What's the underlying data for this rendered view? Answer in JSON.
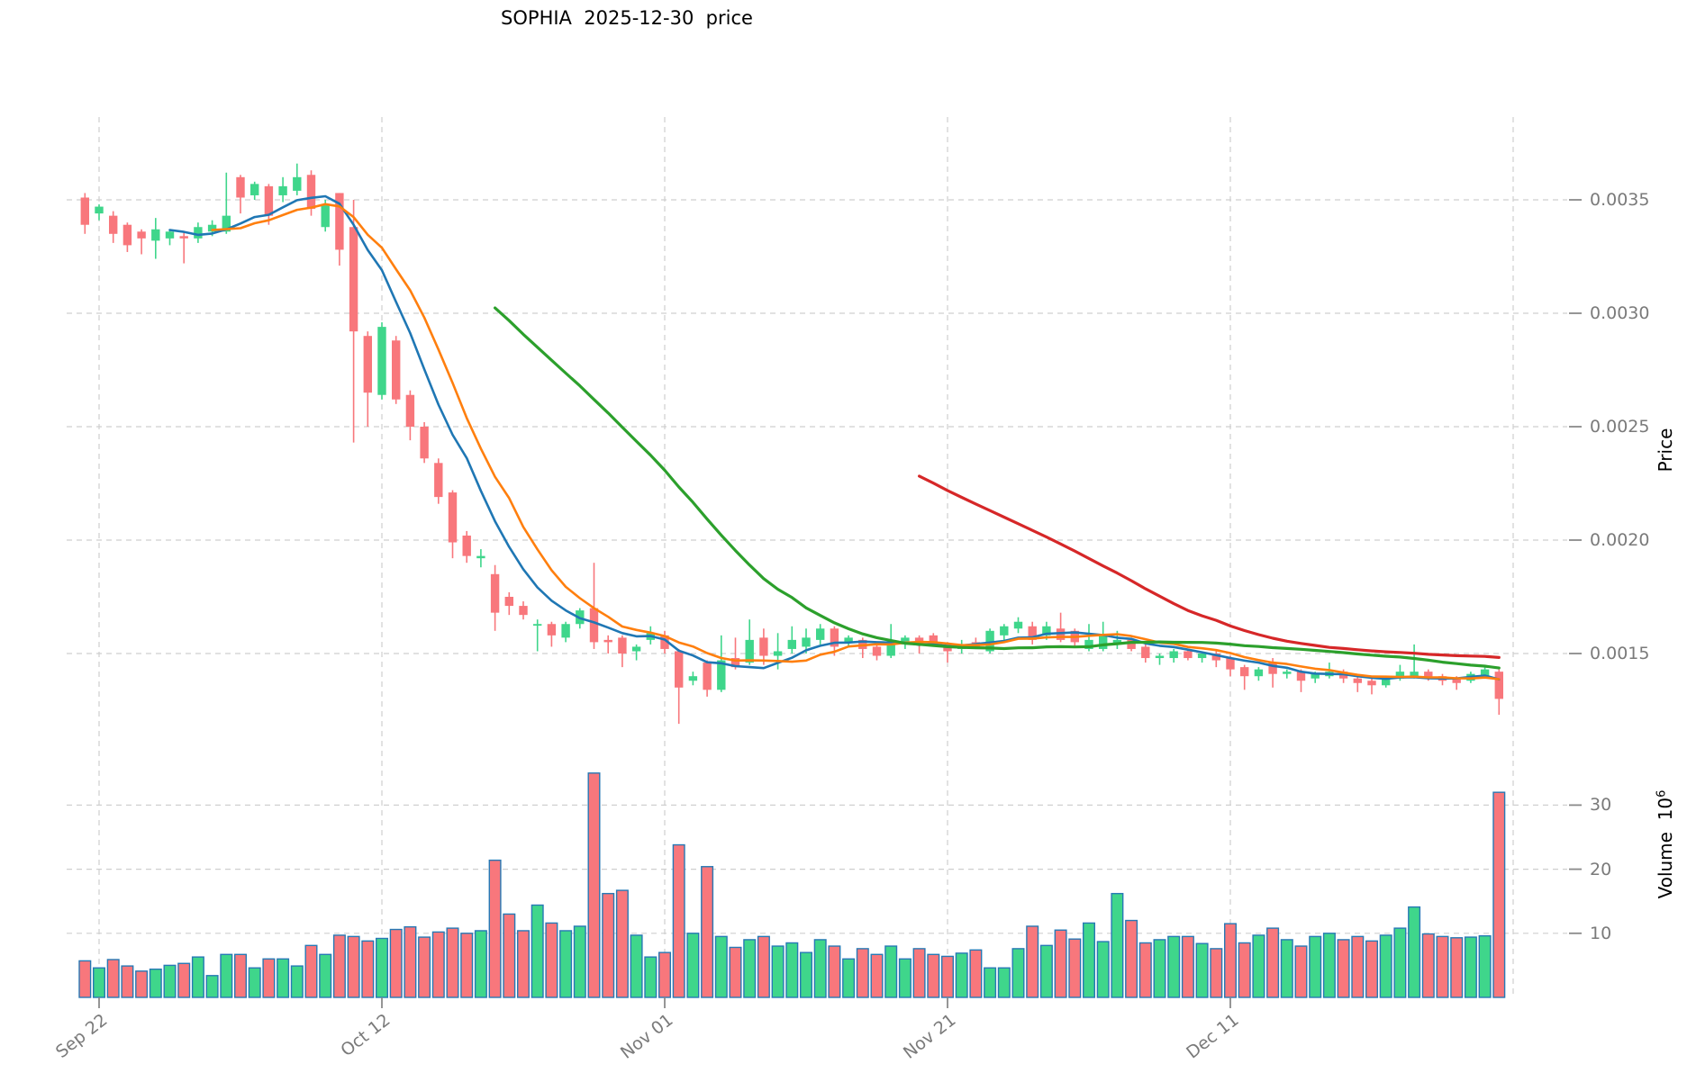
{
  "title": "SOPHIA  2025-12-30  price",
  "price_axis": {
    "label": "Price",
    "ticks": [
      0.0035,
      0.003,
      0.0025,
      0.002,
      0.0015
    ]
  },
  "volume_axis": {
    "label": "Volume",
    "base": "10",
    "exponent": "6",
    "ticks": [
      30,
      20,
      10
    ]
  },
  "x_axis": {
    "ticks": [
      {
        "label": "Sep 22",
        "date": "2025-09-22"
      },
      {
        "label": "Oct 12",
        "date": "2025-10-12"
      },
      {
        "label": "Nov 01",
        "date": "2025-11-01"
      },
      {
        "label": "Nov 21",
        "date": "2025-11-21"
      },
      {
        "label": "Dec 11",
        "date": "2025-12-11"
      }
    ],
    "gridline_only_dates": [
      "2025-12-31"
    ]
  },
  "colors": {
    "up": "#3fd68b",
    "down": "#f8777c",
    "volume_edge": "#2779b5",
    "grid": "#cfcfcf",
    "tick_mark": "#8a8a8a",
    "tick_text": "#7a7a7a",
    "title_text": "#000000",
    "ma_colors": [
      "#1f77b4",
      "#ff7f0e",
      "#2ca02c",
      "#d62728"
    ]
  },
  "chart_data": {
    "type": "candlestick+volume",
    "title": "SOPHIA  2025-12-30  price",
    "ylabel": "Price",
    "ylabel_lower": "Volume 10^6",
    "price_ylim": [
      0.00109,
      0.003865
    ],
    "volume_ylim_millions": [
      0,
      39
    ],
    "grid": "dashed",
    "legend_position": "none",
    "moving_averages": [
      {
        "name": "SMA7",
        "period": 7,
        "color": "#1f77b4",
        "width": 2.6
      },
      {
        "name": "SMA10",
        "period": 10,
        "color": "#ff7f0e",
        "width": 2.6
      },
      {
        "name": "SMA30",
        "period": 30,
        "color": "#2ca02c",
        "width": 3.2
      },
      {
        "name": "SMA60",
        "period": 60,
        "color": "#d62728",
        "width": 3.2
      }
    ],
    "columns": [
      "date",
      "open",
      "high",
      "low",
      "close",
      "volume_millions"
    ],
    "ohlcv": [
      [
        "2025-09-21",
        0.00351,
        0.00353,
        0.00335,
        0.00339,
        5.7
      ],
      [
        "2025-09-22",
        0.00344,
        0.00348,
        0.00341,
        0.00347,
        4.6
      ],
      [
        "2025-09-23",
        0.00343,
        0.00345,
        0.00331,
        0.00335,
        5.9
      ],
      [
        "2025-09-24",
        0.00339,
        0.0034,
        0.00327,
        0.0033,
        4.9
      ],
      [
        "2025-09-25",
        0.00336,
        0.00337,
        0.00326,
        0.00333,
        4.1
      ],
      [
        "2025-09-26",
        0.00332,
        0.00342,
        0.00324,
        0.00337,
        4.4
      ],
      [
        "2025-09-27",
        0.00333,
        0.00337,
        0.0033,
        0.00336,
        5.0
      ],
      [
        "2025-09-28",
        0.00334,
        0.00336,
        0.00322,
        0.00333,
        5.3
      ],
      [
        "2025-09-29",
        0.00333,
        0.0034,
        0.00331,
        0.00338,
        6.3
      ],
      [
        "2025-09-30",
        0.00336,
        0.00341,
        0.00334,
        0.00339,
        3.4
      ],
      [
        "2025-10-01",
        0.00336,
        0.00362,
        0.00335,
        0.00343,
        6.7
      ],
      [
        "2025-10-02",
        0.0036,
        0.00361,
        0.00344,
        0.00351,
        6.7
      ],
      [
        "2025-10-03",
        0.00352,
        0.00358,
        0.0035,
        0.00357,
        4.6
      ],
      [
        "2025-10-04",
        0.00356,
        0.00357,
        0.00339,
        0.00343,
        6.0
      ],
      [
        "2025-10-05",
        0.00352,
        0.0036,
        0.00349,
        0.00356,
        6.0
      ],
      [
        "2025-10-06",
        0.00354,
        0.00366,
        0.00352,
        0.0036,
        4.9
      ],
      [
        "2025-10-07",
        0.00361,
        0.00363,
        0.00343,
        0.00346,
        8.1
      ],
      [
        "2025-10-08",
        0.00338,
        0.0035,
        0.00336,
        0.00348,
        6.7
      ],
      [
        "2025-10-09",
        0.00353,
        0.00353,
        0.00321,
        0.00328,
        9.7
      ],
      [
        "2025-10-10",
        0.00338,
        0.0035,
        0.00243,
        0.00292,
        9.5
      ],
      [
        "2025-10-11",
        0.0029,
        0.00292,
        0.0025,
        0.00265,
        8.8
      ],
      [
        "2025-10-12",
        0.00264,
        0.00296,
        0.00262,
        0.00294,
        9.2
      ],
      [
        "2025-10-13",
        0.00288,
        0.0029,
        0.0026,
        0.00262,
        10.6
      ],
      [
        "2025-10-14",
        0.00264,
        0.00266,
        0.00244,
        0.0025,
        11.0
      ],
      [
        "2025-10-15",
        0.0025,
        0.00252,
        0.00234,
        0.00236,
        9.4
      ],
      [
        "2025-10-16",
        0.00234,
        0.00236,
        0.00216,
        0.00219,
        10.2
      ],
      [
        "2025-10-17",
        0.00221,
        0.00222,
        0.00192,
        0.00199,
        10.8
      ],
      [
        "2025-10-18",
        0.00202,
        0.00204,
        0.0019,
        0.00193,
        10.0
      ],
      [
        "2025-10-19",
        0.00192,
        0.00196,
        0.00188,
        0.00193,
        10.4
      ],
      [
        "2025-10-20",
        0.00185,
        0.00189,
        0.0016,
        0.00168,
        21.4
      ],
      [
        "2025-10-21",
        0.00175,
        0.00177,
        0.00167,
        0.00171,
        13.0
      ],
      [
        "2025-10-22",
        0.00171,
        0.00173,
        0.00165,
        0.00167,
        10.4
      ],
      [
        "2025-10-23",
        0.00163,
        0.00165,
        0.00151,
        0.00163,
        14.4
      ],
      [
        "2025-10-24",
        0.00163,
        0.00164,
        0.00153,
        0.00158,
        11.6
      ],
      [
        "2025-10-25",
        0.00157,
        0.00164,
        0.00155,
        0.00163,
        10.4
      ],
      [
        "2025-10-26",
        0.00163,
        0.0017,
        0.00161,
        0.00169,
        11.1
      ],
      [
        "2025-10-27",
        0.0017,
        0.0019,
        0.00152,
        0.00155,
        35.0
      ],
      [
        "2025-10-28",
        0.00156,
        0.00158,
        0.0015,
        0.00155,
        16.2
      ],
      [
        "2025-10-29",
        0.00157,
        0.00158,
        0.00144,
        0.0015,
        16.7
      ],
      [
        "2025-10-30",
        0.00151,
        0.00154,
        0.00147,
        0.00153,
        9.7
      ],
      [
        "2025-10-31",
        0.00156,
        0.00162,
        0.00154,
        0.00159,
        6.3
      ],
      [
        "2025-11-01",
        0.00158,
        0.0016,
        0.0015,
        0.00152,
        7.0
      ],
      [
        "2025-11-02",
        0.00151,
        0.00152,
        0.00119,
        0.00135,
        23.8
      ],
      [
        "2025-11-03",
        0.00138,
        0.00142,
        0.00136,
        0.0014,
        10.0
      ],
      [
        "2025-11-04",
        0.00146,
        0.00147,
        0.00131,
        0.00134,
        20.4
      ],
      [
        "2025-11-05",
        0.00134,
        0.00158,
        0.00133,
        0.00147,
        9.5
      ],
      [
        "2025-11-06",
        0.00148,
        0.00157,
        0.00143,
        0.00144,
        7.8
      ],
      [
        "2025-11-07",
        0.00146,
        0.00165,
        0.00145,
        0.00156,
        9.0
      ],
      [
        "2025-11-08",
        0.00157,
        0.00161,
        0.00145,
        0.00149,
        9.5
      ],
      [
        "2025-11-09",
        0.00149,
        0.00159,
        0.00143,
        0.00151,
        8.0
      ],
      [
        "2025-11-10",
        0.00152,
        0.00162,
        0.0015,
        0.00156,
        8.5
      ],
      [
        "2025-11-11",
        0.00153,
        0.00161,
        0.0015,
        0.00157,
        7.0
      ],
      [
        "2025-11-12",
        0.00156,
        0.00163,
        0.00154,
        0.00161,
        9.0
      ],
      [
        "2025-11-13",
        0.00161,
        0.00162,
        0.00149,
        0.00153,
        8.0
      ],
      [
        "2025-11-14",
        0.00155,
        0.00158,
        0.00153,
        0.00157,
        6.0
      ],
      [
        "2025-11-15",
        0.00156,
        0.00157,
        0.00148,
        0.00152,
        7.6
      ],
      [
        "2025-11-16",
        0.00153,
        0.00154,
        0.00147,
        0.00149,
        6.7
      ],
      [
        "2025-11-17",
        0.00149,
        0.00163,
        0.00148,
        0.00155,
        8.0
      ],
      [
        "2025-11-18",
        0.00154,
        0.00158,
        0.00152,
        0.00157,
        6.0
      ],
      [
        "2025-11-19",
        0.00157,
        0.00158,
        0.0015,
        0.00154,
        7.6
      ],
      [
        "2025-11-20",
        0.00158,
        0.00159,
        0.00153,
        0.00155,
        6.7
      ],
      [
        "2025-11-21",
        0.00154,
        0.00155,
        0.00146,
        0.00151,
        6.4
      ],
      [
        "2025-11-22",
        0.00152,
        0.00156,
        0.0015,
        0.00154,
        6.9
      ],
      [
        "2025-11-23",
        0.00155,
        0.00157,
        0.00152,
        0.00153,
        7.4
      ],
      [
        "2025-11-24",
        0.00151,
        0.00161,
        0.0015,
        0.0016,
        4.6
      ],
      [
        "2025-11-25",
        0.00158,
        0.00163,
        0.00156,
        0.00162,
        4.6
      ],
      [
        "2025-11-26",
        0.00161,
        0.00166,
        0.00159,
        0.00164,
        7.6
      ],
      [
        "2025-11-27",
        0.00162,
        0.00164,
        0.00154,
        0.00156,
        11.1
      ],
      [
        "2025-11-28",
        0.00158,
        0.00164,
        0.00156,
        0.00162,
        8.1
      ],
      [
        "2025-11-29",
        0.00161,
        0.00168,
        0.00155,
        0.00156,
        10.5
      ],
      [
        "2025-11-30",
        0.0016,
        0.00161,
        0.00153,
        0.00155,
        9.1
      ],
      [
        "2025-12-01",
        0.00152,
        0.00163,
        0.00151,
        0.00156,
        11.6
      ],
      [
        "2025-12-02",
        0.00152,
        0.00164,
        0.00151,
        0.00158,
        8.7
      ],
      [
        "2025-12-03",
        0.00154,
        0.0016,
        0.00152,
        0.00156,
        16.2
      ],
      [
        "2025-12-04",
        0.00156,
        0.00157,
        0.00151,
        0.00152,
        12.0
      ],
      [
        "2025-12-05",
        0.00153,
        0.00154,
        0.00146,
        0.00148,
        8.5
      ],
      [
        "2025-12-06",
        0.00148,
        0.0015,
        0.00145,
        0.00149,
        9.0
      ],
      [
        "2025-12-07",
        0.00148,
        0.00152,
        0.00146,
        0.00151,
        9.5
      ],
      [
        "2025-12-08",
        0.00151,
        0.00152,
        0.00147,
        0.00148,
        9.5
      ],
      [
        "2025-12-09",
        0.00148,
        0.00151,
        0.00146,
        0.0015,
        8.4
      ],
      [
        "2025-12-10",
        0.0015,
        0.00151,
        0.00144,
        0.00147,
        7.6
      ],
      [
        "2025-12-11",
        0.00148,
        0.00149,
        0.0014,
        0.00143,
        11.5
      ],
      [
        "2025-12-12",
        0.00144,
        0.00145,
        0.00134,
        0.0014,
        8.5
      ],
      [
        "2025-12-13",
        0.0014,
        0.00144,
        0.00138,
        0.00143,
        9.7
      ],
      [
        "2025-12-14",
        0.00146,
        0.00148,
        0.00135,
        0.00141,
        10.8
      ],
      [
        "2025-12-15",
        0.00141,
        0.00143,
        0.00139,
        0.00142,
        9.0
      ],
      [
        "2025-12-16",
        0.00142,
        0.00143,
        0.00133,
        0.00138,
        8.0
      ],
      [
        "2025-12-17",
        0.00139,
        0.00142,
        0.00137,
        0.00141,
        9.5
      ],
      [
        "2025-12-18",
        0.0014,
        0.00146,
        0.00139,
        0.00142,
        10.0
      ],
      [
        "2025-12-19",
        0.00142,
        0.00143,
        0.00137,
        0.00139,
        9.0
      ],
      [
        "2025-12-20",
        0.00139,
        0.0014,
        0.00133,
        0.00137,
        9.5
      ],
      [
        "2025-12-21",
        0.00138,
        0.00139,
        0.00132,
        0.00136,
        8.8
      ],
      [
        "2025-12-22",
        0.00136,
        0.0014,
        0.00135,
        0.00139,
        9.7
      ],
      [
        "2025-12-23",
        0.00139,
        0.00145,
        0.00138,
        0.00142,
        10.8
      ],
      [
        "2025-12-24",
        0.0014,
        0.00154,
        0.00139,
        0.00142,
        14.1
      ],
      [
        "2025-12-25",
        0.00142,
        0.00143,
        0.00138,
        0.00139,
        9.9
      ],
      [
        "2025-12-26",
        0.0014,
        0.00141,
        0.00136,
        0.00138,
        9.5
      ],
      [
        "2025-12-27",
        0.00139,
        0.0014,
        0.00134,
        0.00137,
        9.3
      ],
      [
        "2025-12-28",
        0.00138,
        0.00142,
        0.00137,
        0.00141,
        9.4
      ],
      [
        "2025-12-29",
        0.0014,
        0.00144,
        0.00139,
        0.00143,
        9.6
      ],
      [
        "2025-12-30",
        0.00142,
        0.00143,
        0.00123,
        0.0013,
        32.0
      ]
    ]
  }
}
